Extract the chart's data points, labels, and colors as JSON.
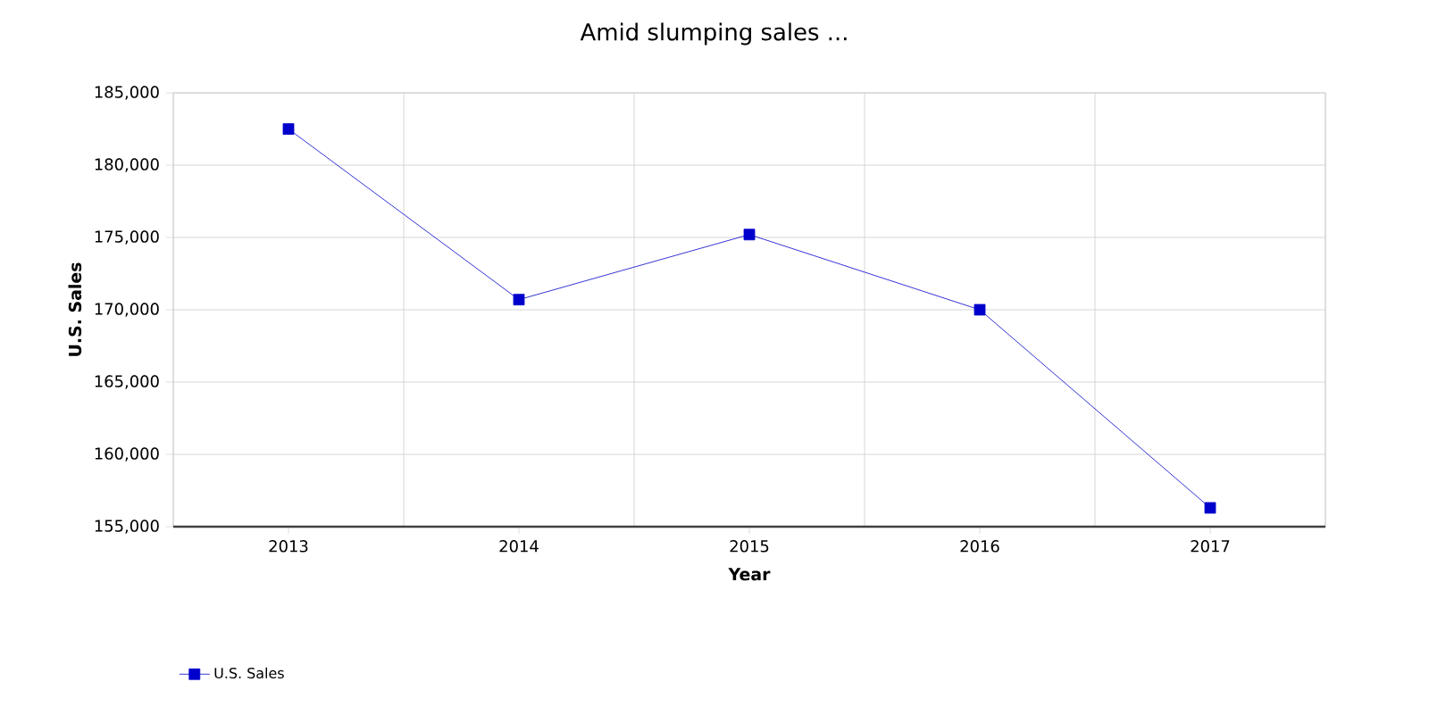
{
  "chart_data": {
    "type": "line",
    "title": "Amid slumping sales ...",
    "xlabel": "Year",
    "ylabel": "U.S. Sales",
    "categories": [
      "2013",
      "2014",
      "2015",
      "2016",
      "2017"
    ],
    "series": [
      {
        "name": "U.S. Sales",
        "color": "#0000cc",
        "values": [
          182500,
          170700,
          175200,
          170000,
          156300
        ]
      }
    ],
    "ylim": [
      155000,
      185000
    ],
    "yticks": [
      {
        "value": 155000,
        "label": "155,000"
      },
      {
        "value": 160000,
        "label": "160,000"
      },
      {
        "value": 165000,
        "label": "165,000"
      },
      {
        "value": 170000,
        "label": "170,000"
      },
      {
        "value": 175000,
        "label": "175,000"
      },
      {
        "value": 180000,
        "label": "180,000"
      },
      {
        "value": 185000,
        "label": "185,000"
      }
    ],
    "grid": true,
    "legend": "bottom left",
    "marker": "square",
    "line_style": "solid"
  }
}
